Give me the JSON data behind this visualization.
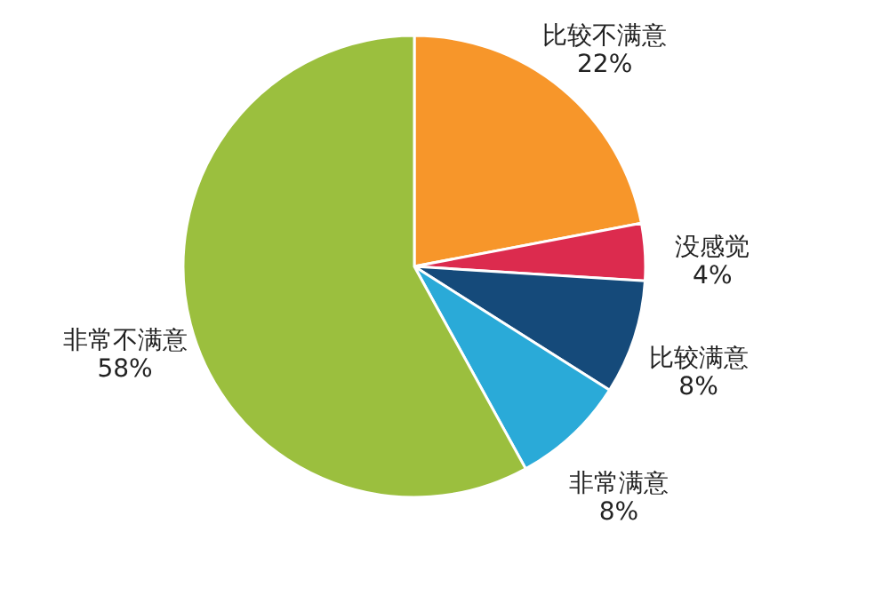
{
  "chart_data": {
    "type": "pie",
    "categories": [
      "比较不满意",
      "没感觉",
      "比较满意",
      "非常满意",
      "非常不满意"
    ],
    "values": [
      22,
      4,
      8,
      8,
      58
    ],
    "value_labels": [
      "22%",
      "4%",
      "8%",
      "8%",
      "58%"
    ],
    "colors": [
      "#f7962a",
      "#dc2b4e",
      "#154a7a",
      "#2aaad8",
      "#9bbf3e"
    ]
  }
}
